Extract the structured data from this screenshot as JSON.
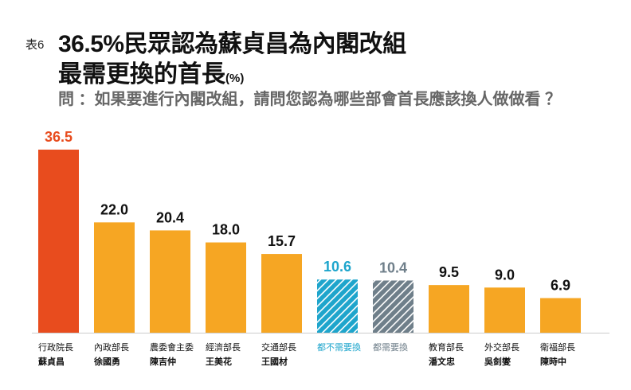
{
  "header": {
    "table_no": "表6",
    "title_line1": "36.5%民眾認為蘇貞昌為內閣改組",
    "title_line2": "最需更換的首長",
    "unit": "(%)",
    "question": "問 ：如果要進行內閣改組，請問您認為哪些部會首長應該換人做做看 ？"
  },
  "chart_data": {
    "type": "bar",
    "categories": [
      [
        "行政院長",
        "蘇貞昌"
      ],
      [
        "內政部長",
        "徐國勇"
      ],
      [
        "農委會主委",
        "陳吉仲"
      ],
      [
        "經濟部長",
        "王美花"
      ],
      [
        "交通部長",
        "王國材"
      ],
      [
        "都不需要換",
        ""
      ],
      [
        "都需要換",
        ""
      ],
      [
        "教育部長",
        "潘文忠"
      ],
      [
        "外交部長",
        "吳釗燮"
      ],
      [
        "衛福部長",
        "陳時中"
      ]
    ],
    "values": [
      36.5,
      22.0,
      20.4,
      18.0,
      15.7,
      10.6,
      10.4,
      9.5,
      9.0,
      6.9
    ],
    "value_labels": [
      "36.5",
      "22.0",
      "20.4",
      "18.0",
      "15.7",
      "10.6",
      "10.4",
      "9.5",
      "9.0",
      "6.9"
    ],
    "bar_styles": [
      "highlight",
      "normal",
      "normal",
      "normal",
      "normal",
      "hatched-blue",
      "hatched-gray",
      "normal",
      "normal",
      "normal"
    ],
    "ylim": [
      0,
      36.5
    ],
    "grid": false,
    "colors": {
      "highlight": "#e84c1e",
      "normal": "#f6a623",
      "hatched-blue": "#1ea5cc",
      "hatched-gray": "#6f7f8a",
      "label": "#111111"
    }
  }
}
